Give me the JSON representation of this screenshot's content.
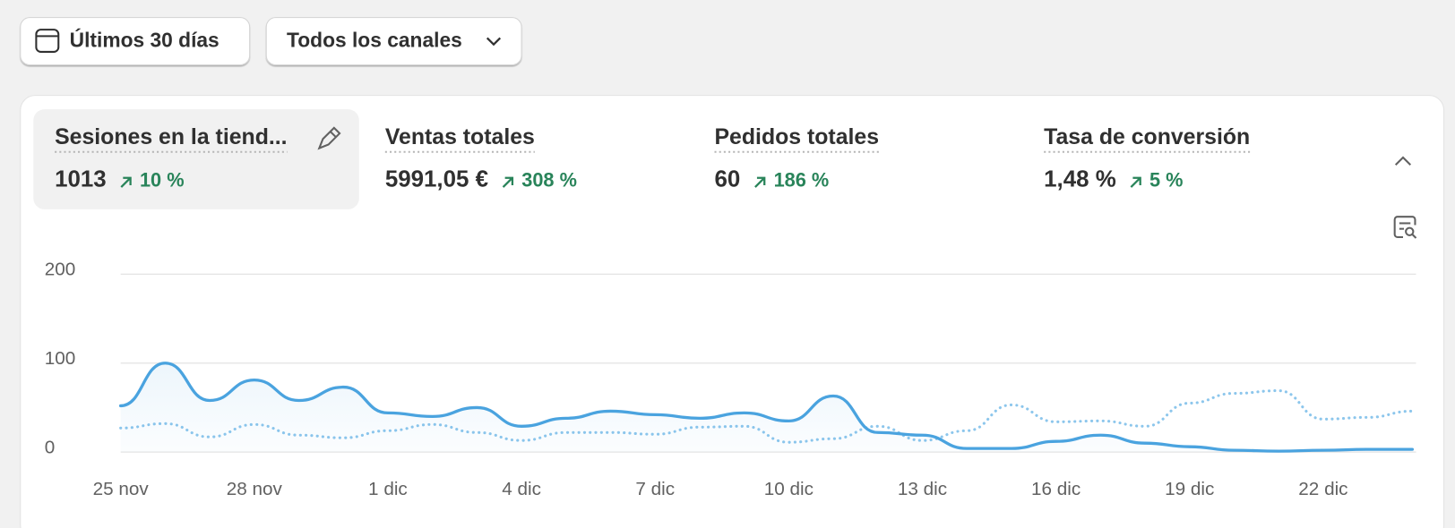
{
  "filters": {
    "date_range": "Últimos 30 días",
    "channels": "Todos los canales"
  },
  "metrics": [
    {
      "title": "Sesiones en la tiend...",
      "value": "1013",
      "change": "10 %"
    },
    {
      "title": "Ventas totales",
      "value": "5991,05 €",
      "change": "308 %"
    },
    {
      "title": "Pedidos totales",
      "value": "60",
      "change": "186 %"
    },
    {
      "title": "Tasa de conversión",
      "value": "1,48 %",
      "change": "5 %"
    }
  ],
  "chart_data": {
    "type": "line",
    "categories": [
      "25 nov",
      null,
      null,
      "28 nov",
      null,
      null,
      "1 dic",
      null,
      null,
      "4 dic",
      null,
      null,
      "7 dic",
      null,
      null,
      "10 dic",
      null,
      null,
      "13 dic",
      null,
      null,
      "16 dic",
      null,
      null,
      "19 dic",
      null,
      null,
      "22 dic",
      null,
      null
    ],
    "series": [
      {
        "color": "#4aa3df",
        "dashed": false,
        "area": true,
        "values": [
          52,
          100,
          58,
          81,
          58,
          73,
          44,
          40,
          50,
          29,
          38,
          46,
          42,
          38,
          44,
          35,
          63,
          22,
          19,
          4,
          4,
          12,
          19,
          10,
          6,
          2,
          1,
          2,
          3,
          3
        ]
      },
      {
        "color": "#8cc6ec",
        "dashed": true,
        "area": false,
        "values": [
          27,
          32,
          17,
          31,
          19,
          16,
          24,
          31,
          22,
          13,
          22,
          22,
          20,
          28,
          29,
          11,
          15,
          29,
          13,
          24,
          53,
          34,
          35,
          29,
          55,
          66,
          69,
          37,
          39,
          46
        ]
      }
    ],
    "ylim": [
      0,
      200
    ],
    "yticks": [
      0,
      100,
      200
    ],
    "grid": true
  }
}
